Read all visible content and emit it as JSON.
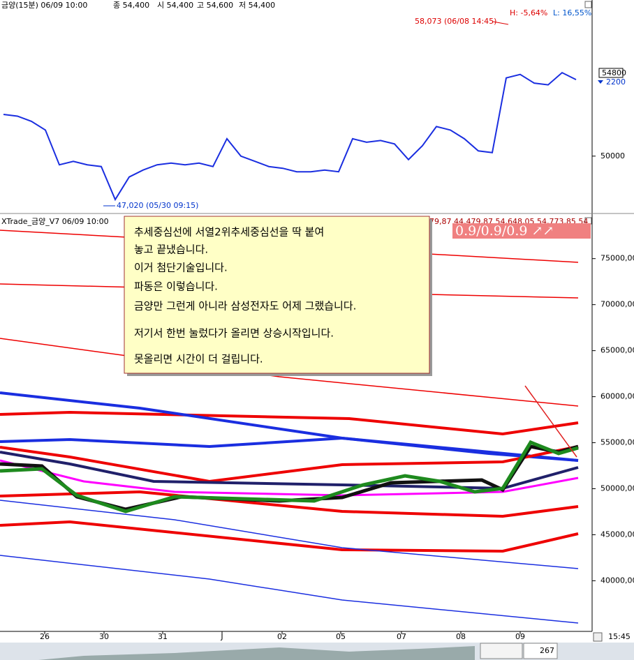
{
  "header": {
    "symbol": "금양(15분) 06/09 10:00",
    "close": "종 54,400",
    "open": "시 54,400",
    "high": "고 54,600",
    "low": "저 54,400",
    "high_pct": "H: -5,64%",
    "low_pct": "L: 16,55%"
  },
  "price_panel": {
    "annotation_high": "58,073 (06/08 14:45)",
    "annotation_low": "47,020 (05/30 09:15)",
    "current_price": "54800",
    "change": "2200",
    "ylim": [
      46700,
      58900
    ],
    "yticks": [
      50000
    ],
    "values": [
      52400,
      52300,
      52000,
      51500,
      49500,
      49700,
      49500,
      49400,
      47500,
      48800,
      49200,
      49500,
      49600,
      49500,
      49600,
      49400,
      51000,
      50000,
      49700,
      49400,
      49300,
      49100,
      49100,
      49200,
      49100,
      51000,
      50800,
      50900,
      50700,
      49800,
      50600,
      51700,
      51500,
      51000,
      50300,
      50200,
      54500,
      54700,
      54200,
      54100,
      54800,
      54400
    ]
  },
  "indicator_panel": {
    "title": "XTrade_금양_V7  06/09 10:00",
    "values_text": "79,87 44,479,87 54,648,05 54,773,85 54",
    "signal": "0.9/0.9/0.9 ↗↗",
    "ylim": [
      34500,
      79600
    ],
    "yticks": [
      {
        "value": 75000,
        "label": "75000,00"
      },
      {
        "value": 70000,
        "label": "70000,00"
      },
      {
        "value": 65000,
        "label": "65000,00"
      },
      {
        "value": 60000,
        "label": "60000,00"
      },
      {
        "value": 55000,
        "label": "55000,00"
      },
      {
        "value": 50000,
        "label": "50000,00"
      },
      {
        "value": 45000,
        "label": "45000,00"
      },
      {
        "value": 40000,
        "label": "40000,00"
      }
    ]
  },
  "callout": {
    "lines": [
      "추세중심선에 서열2위추세중심선을 딱 붙여",
      "놓고 끝냈습니다.",
      "이거 첨단기술입니다.",
      "파동은 이렇습니다.",
      "금양만 그런게 아니라 삼성전자도 어제 그랬습니다.",
      "저기서 한번 눌렀다가 올리면 상승시작입니다.",
      "못올리면 시간이 더 걸립니다."
    ]
  },
  "x_axis": {
    "labels": [
      "26",
      "30",
      "31",
      "J",
      "02",
      "05",
      "07",
      "08",
      "09"
    ],
    "time": "15:45"
  },
  "scrollbar": {
    "count": "267"
  }
}
